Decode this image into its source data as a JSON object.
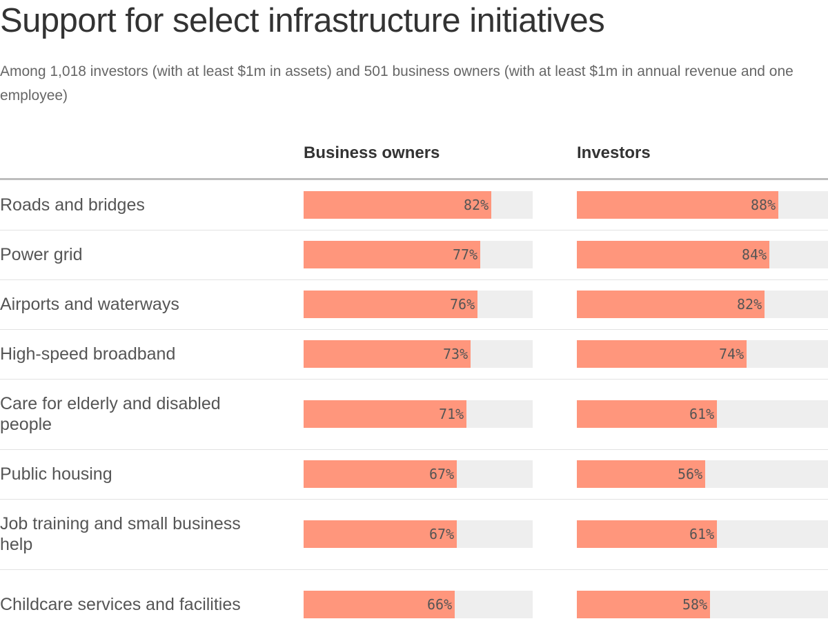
{
  "chart_data": {
    "type": "bar",
    "title": "Support for select infrastructure initiatives",
    "subtitle": "Among 1,018 investors (with at least $1m in assets) and 501 business owners (with at least $1m in annual revenue and one employee)",
    "categories": [
      "Roads and bridges",
      "Power grid",
      "Airports and waterways",
      "High-speed broadband",
      "Care for elderly and disabled people",
      "Public housing",
      "Job training and small business help",
      "Childcare services and facilities"
    ],
    "series": [
      {
        "name": "Business owners",
        "values": [
          82,
          77,
          76,
          73,
          71,
          67,
          67,
          66
        ]
      },
      {
        "name": "Investors",
        "values": [
          88,
          84,
          82,
          74,
          61,
          56,
          61,
          58
        ]
      }
    ],
    "value_suffix": "%",
    "xlim": [
      0,
      100
    ],
    "grid": false,
    "legend": "column headers",
    "colors": {
      "bar": "#ff967c",
      "track": "#eeeeee"
    }
  }
}
